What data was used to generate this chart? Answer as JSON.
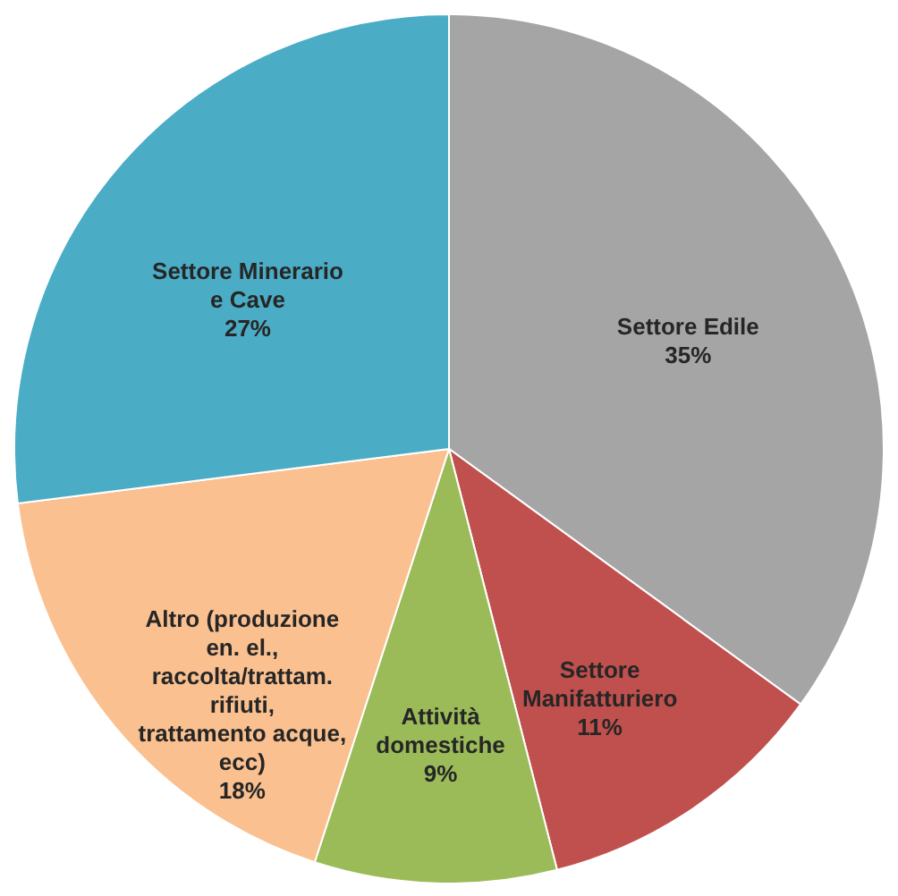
{
  "chart_data": {
    "type": "pie",
    "categories": [
      "Settore Edile",
      "Settore Manifatturiero",
      "Attività domestiche",
      "Altro (produzione en. el., raccolta/trattam. rifiuti, trattamento acque, ecc)",
      "Settore Minerario e Cave"
    ],
    "values": [
      35,
      11,
      9,
      18,
      27
    ],
    "colors": [
      "#a5a5a5",
      "#c0504d",
      "#9bbb59",
      "#fac090",
      "#4bacc6"
    ],
    "value_labels": [
      "35%",
      "11%",
      "9%",
      "18%",
      "27%"
    ]
  }
}
